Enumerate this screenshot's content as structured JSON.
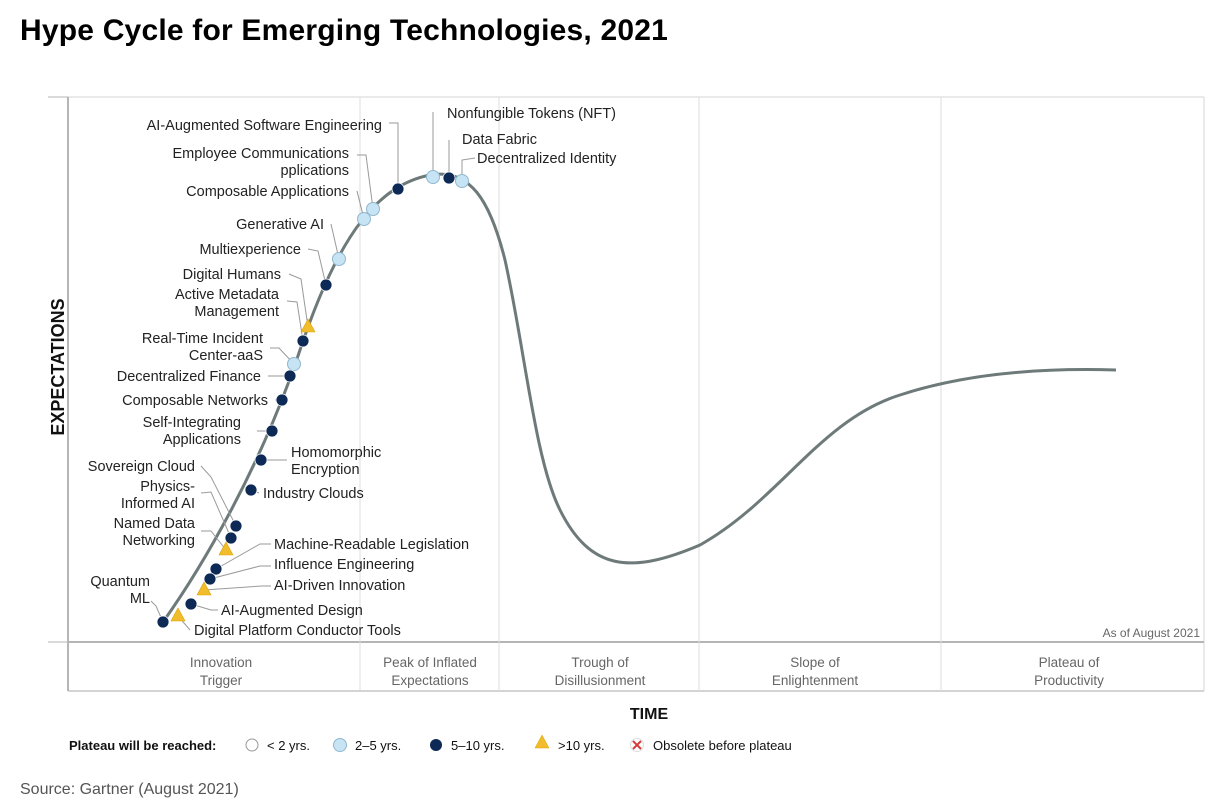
{
  "title": "Hype Cycle for Emerging Technologies, 2021",
  "source": "Source: Gartner (August 2021)",
  "colors": {
    "dark": "#0d2a57",
    "light": "#c7e4f5",
    "triangle": "#f2bd2c",
    "curve": "#6e7a7a"
  },
  "chart_data": {
    "type": "scatter",
    "title": "Hype Cycle for Emerging Technologies, 2021",
    "xlabel": "TIME",
    "ylabel": "EXPECTATIONS",
    "as_of": "As of August 2021",
    "phases": [
      {
        "line1": "Innovation",
        "line2": "Trigger"
      },
      {
        "line1": "Peak of Inflated",
        "line2": "Expectations"
      },
      {
        "line1": "Trough of",
        "line2": "Disillusionment"
      },
      {
        "line1": "Slope of",
        "line2": "Enlightenment"
      },
      {
        "line1": "Plateau of",
        "line2": "Productivity"
      }
    ],
    "legend": {
      "title": "Plateau will be reached:",
      "items": [
        {
          "symbol": "white-circle",
          "label": "< 2 yrs."
        },
        {
          "symbol": "light-circle",
          "label": "2–5 yrs."
        },
        {
          "symbol": "dark-circle",
          "label": "5–10 yrs."
        },
        {
          "symbol": "triangle",
          "label": ">10 yrs."
        },
        {
          "symbol": "x",
          "label": "Obsolete before plateau"
        }
      ]
    },
    "technologies": [
      {
        "name": "Nonfungible Tokens (NFT)",
        "plateau": "2–5 yrs."
      },
      {
        "name": "Data Fabric",
        "plateau": "5–10 yrs."
      },
      {
        "name": "Decentralized Identity",
        "plateau": "2–5 yrs."
      },
      {
        "name": "AI-Augmented Software Engineering",
        "plateau": "5–10 yrs."
      },
      {
        "name": "Employee Communications Applications",
        "plateau": "2–5 yrs."
      },
      {
        "name": "Composable Applications",
        "plateau": "2–5 yrs."
      },
      {
        "name": "Generative AI",
        "plateau": "2–5 yrs."
      },
      {
        "name": "Multiexperience",
        "plateau": "5–10 yrs."
      },
      {
        "name": "Digital Humans",
        "plateau": ">10 yrs."
      },
      {
        "name": "Active Metadata Management",
        "plateau": "5–10 yrs."
      },
      {
        "name": "Real-Time Incident Center-aaS",
        "plateau": "2–5 yrs."
      },
      {
        "name": "Decentralized Finance",
        "plateau": "5–10 yrs."
      },
      {
        "name": "Composable Networks",
        "plateau": "5–10 yrs."
      },
      {
        "name": "Self-Integrating Applications",
        "plateau": "5–10 yrs."
      },
      {
        "name": "Homomorphic Encryption",
        "plateau": "5–10 yrs."
      },
      {
        "name": "Industry Clouds",
        "plateau": "5–10 yrs."
      },
      {
        "name": "Sovereign Cloud",
        "plateau": "5–10 yrs."
      },
      {
        "name": "Physics-Informed AI",
        "plateau": "5–10 yrs."
      },
      {
        "name": "Named Data Networking",
        "plateau": ">10 yrs."
      },
      {
        "name": "Machine-Readable Legislation",
        "plateau": "5–10 yrs."
      },
      {
        "name": "Influence Engineering",
        "plateau": "5–10 yrs."
      },
      {
        "name": "AI-Driven Innovation",
        "plateau": ">10 yrs."
      },
      {
        "name": "AI-Augmented Design",
        "plateau": "5–10 yrs."
      },
      {
        "name": "Quantum ML",
        "plateau": "5–10 yrs."
      },
      {
        "name": "Digital Platform Conductor Tools",
        "plateau": ">10 yrs."
      }
    ]
  }
}
